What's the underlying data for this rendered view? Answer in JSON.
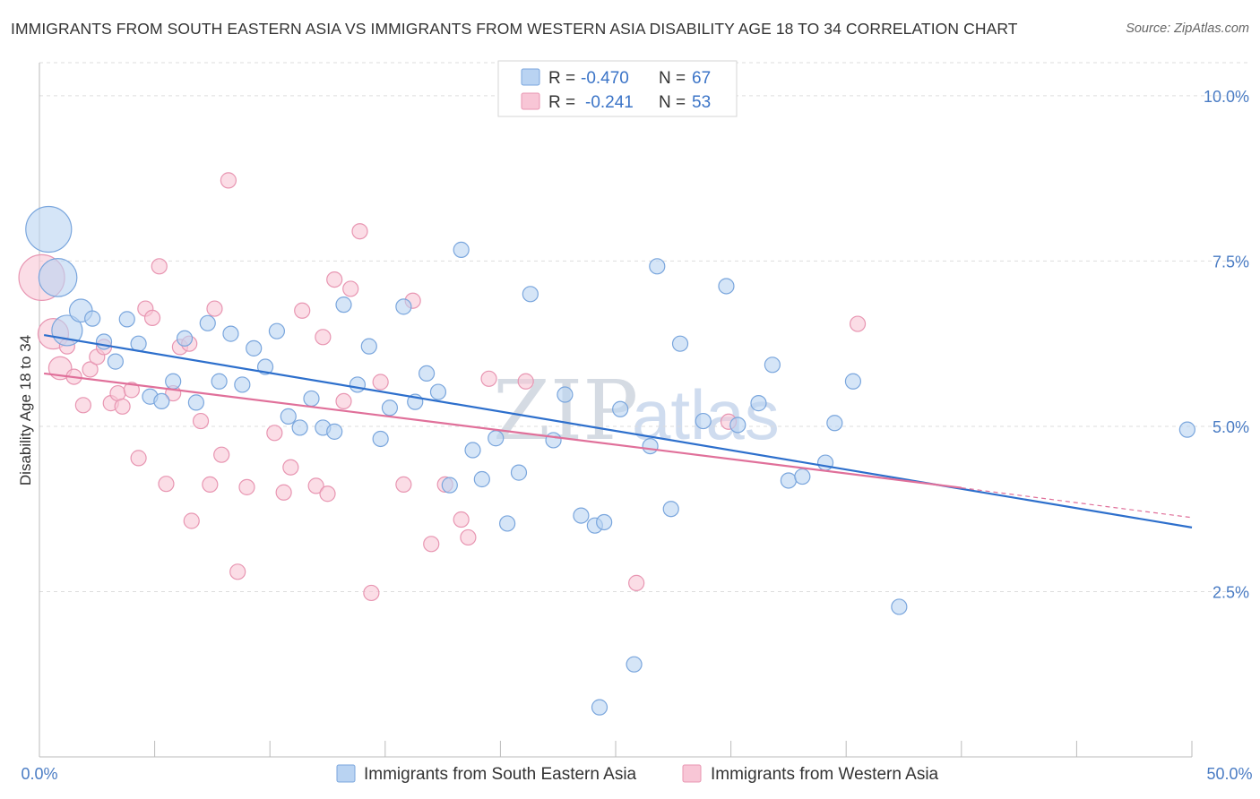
{
  "header": {
    "title": "IMMIGRANTS FROM SOUTH EASTERN ASIA VS IMMIGRANTS FROM WESTERN ASIA DISABILITY AGE 18 TO 34 CORRELATION CHART",
    "source": "Source: ZipAtlas.com"
  },
  "colors": {
    "blue_fill": "#b9d3f2",
    "blue_stroke": "#7aa6dd",
    "blue_line": "#2d6fcc",
    "pink_fill": "#f8c6d6",
    "pink_stroke": "#e896b2",
    "pink_line": "#e0709a",
    "grid": "#dddddd",
    "tick_text": "#4a7cc4"
  },
  "legend": {
    "r_label": "R =",
    "n_label": "N =",
    "series1_r": "-0.470",
    "series1_n": "67",
    "series2_r": "-0.241",
    "series2_n": "53"
  },
  "watermark": {
    "zip": "ZIP",
    "atlas": "atlas"
  },
  "chart_data": {
    "type": "scatter",
    "title": "IMMIGRANTS FROM SOUTH EASTERN ASIA VS IMMIGRANTS FROM WESTERN ASIA DISABILITY AGE 18 TO 34 CORRELATION CHART",
    "xlabel": "",
    "ylabel": "Disability Age 18 to 34",
    "xlim": [
      0,
      50
    ],
    "ylim": [
      0,
      10.5
    ],
    "x_tick_labels": [
      "0.0%",
      "50.0%"
    ],
    "y_ticks": [
      2.5,
      5.0,
      7.5,
      10.0
    ],
    "y_tick_labels": [
      "2.5%",
      "5.0%",
      "7.5%",
      "10.0%"
    ],
    "grid": true,
    "legend_position": "top-center",
    "series": [
      {
        "name": "Immigrants from South Eastern Asia",
        "r": -0.47,
        "n": 67,
        "trend": {
          "x0": 0.2,
          "y0": 6.38,
          "x1": 50,
          "y1": 3.47
        },
        "points": [
          [
            0.4,
            7.98,
            3
          ],
          [
            0.8,
            7.25,
            2.5
          ],
          [
            1.2,
            6.45,
            2
          ],
          [
            1.8,
            6.75,
            1.5
          ],
          [
            2.3,
            6.63,
            1
          ],
          [
            2.8,
            6.28,
            1
          ],
          [
            3.3,
            5.98,
            1
          ],
          [
            3.8,
            6.62,
            1
          ],
          [
            4.3,
            6.25,
            1
          ],
          [
            4.8,
            5.45,
            1
          ],
          [
            5.3,
            5.38,
            1
          ],
          [
            5.8,
            5.68,
            1
          ],
          [
            6.3,
            6.33,
            1
          ],
          [
            6.8,
            5.36,
            1
          ],
          [
            7.3,
            6.56,
            1
          ],
          [
            7.8,
            5.68,
            1
          ],
          [
            8.3,
            6.4,
            1
          ],
          [
            8.8,
            5.63,
            1
          ],
          [
            9.3,
            6.18,
            1
          ],
          [
            9.8,
            5.9,
            1
          ],
          [
            10.3,
            6.44,
            1
          ],
          [
            10.8,
            5.15,
            1
          ],
          [
            11.3,
            4.98,
            1
          ],
          [
            11.8,
            5.42,
            1
          ],
          [
            12.3,
            4.98,
            1
          ],
          [
            12.8,
            4.92,
            1
          ],
          [
            13.2,
            6.84,
            1
          ],
          [
            13.8,
            5.63,
            1
          ],
          [
            14.3,
            6.21,
            1
          ],
          [
            14.8,
            4.81,
            1
          ],
          [
            15.2,
            5.28,
            1
          ],
          [
            15.8,
            6.81,
            1
          ],
          [
            16.3,
            5.37,
            1
          ],
          [
            16.8,
            5.8,
            1
          ],
          [
            17.3,
            5.52,
            1
          ],
          [
            17.8,
            4.11,
            1
          ],
          [
            18.3,
            7.67,
            1
          ],
          [
            18.8,
            4.64,
            1
          ],
          [
            19.2,
            4.2,
            1
          ],
          [
            19.8,
            4.82,
            1
          ],
          [
            20.3,
            3.53,
            1
          ],
          [
            20.8,
            4.3,
            1
          ],
          [
            21.3,
            7.0,
            1
          ],
          [
            22.3,
            4.79,
            1
          ],
          [
            22.8,
            5.48,
            1
          ],
          [
            23.5,
            3.65,
            1
          ],
          [
            24.1,
            3.5,
            1
          ],
          [
            24.5,
            3.55,
            1
          ],
          [
            25.2,
            5.26,
            1
          ],
          [
            25.8,
            1.4,
            1
          ],
          [
            26.5,
            4.7,
            1
          ],
          [
            26.8,
            7.42,
            1
          ],
          [
            27.4,
            3.75,
            1
          ],
          [
            27.8,
            6.25,
            1
          ],
          [
            28.8,
            5.08,
            1
          ],
          [
            29.8,
            7.12,
            1
          ],
          [
            30.3,
            5.02,
            1
          ],
          [
            31.2,
            5.35,
            1
          ],
          [
            31.8,
            5.93,
            1
          ],
          [
            32.5,
            4.18,
            1
          ],
          [
            33.1,
            4.24,
            1
          ],
          [
            34.1,
            4.45,
            1
          ],
          [
            34.5,
            5.05,
            1
          ],
          [
            35.3,
            5.68,
            1
          ],
          [
            37.3,
            2.27,
            1
          ],
          [
            24.3,
            0.75,
            1
          ],
          [
            49.8,
            4.95,
            1
          ]
        ]
      },
      {
        "name": "Immigrants from Western Asia",
        "r": -0.241,
        "n": 53,
        "trend": {
          "x0": 0.2,
          "y0": 5.8,
          "x1": 40,
          "y1": 4.07,
          "dash_to_x": 50,
          "dash_to_y": 3.62
        },
        "points": [
          [
            0.1,
            7.25,
            3
          ],
          [
            0.6,
            6.4,
            2
          ],
          [
            0.9,
            5.88,
            1.5
          ],
          [
            1.2,
            6.21,
            1
          ],
          [
            1.5,
            5.75,
            1
          ],
          [
            1.9,
            5.32,
            1
          ],
          [
            2.2,
            5.86,
            1
          ],
          [
            2.5,
            6.05,
            1
          ],
          [
            2.8,
            6.2,
            1
          ],
          [
            3.1,
            5.35,
            1
          ],
          [
            3.4,
            5.5,
            1
          ],
          [
            3.6,
            5.3,
            1
          ],
          [
            4.0,
            5.55,
            1
          ],
          [
            4.3,
            4.52,
            1
          ],
          [
            4.6,
            6.78,
            1
          ],
          [
            4.9,
            6.64,
            1
          ],
          [
            5.2,
            7.42,
            1
          ],
          [
            5.5,
            4.13,
            1
          ],
          [
            5.8,
            5.5,
            1
          ],
          [
            6.1,
            6.2,
            1
          ],
          [
            6.5,
            6.25,
            1
          ],
          [
            6.6,
            3.57,
            1
          ],
          [
            7.0,
            5.08,
            1
          ],
          [
            7.4,
            4.12,
            1
          ],
          [
            7.6,
            6.78,
            1
          ],
          [
            7.9,
            4.57,
            1
          ],
          [
            8.2,
            8.72,
            1
          ],
          [
            8.6,
            2.8,
            1
          ],
          [
            9.0,
            4.08,
            1
          ],
          [
            10.2,
            4.9,
            1
          ],
          [
            10.6,
            4.0,
            1
          ],
          [
            10.9,
            4.38,
            1
          ],
          [
            11.4,
            6.75,
            1
          ],
          [
            12.0,
            4.1,
            1
          ],
          [
            12.3,
            6.35,
            1
          ],
          [
            12.5,
            3.98,
            1
          ],
          [
            12.8,
            7.22,
            1
          ],
          [
            13.2,
            5.38,
            1
          ],
          [
            13.5,
            7.08,
            1
          ],
          [
            13.9,
            7.95,
            1
          ],
          [
            14.4,
            2.48,
            1
          ],
          [
            14.8,
            5.67,
            1
          ],
          [
            15.8,
            4.12,
            1
          ],
          [
            16.2,
            6.9,
            1
          ],
          [
            17.0,
            3.22,
            1
          ],
          [
            17.6,
            4.12,
            1
          ],
          [
            18.3,
            3.59,
            1
          ],
          [
            18.6,
            3.32,
            1
          ],
          [
            19.5,
            5.72,
            1
          ],
          [
            21.1,
            5.68,
            1
          ],
          [
            25.9,
            2.63,
            1
          ],
          [
            29.9,
            5.07,
            1
          ],
          [
            35.5,
            6.55,
            1
          ]
        ]
      }
    ]
  }
}
